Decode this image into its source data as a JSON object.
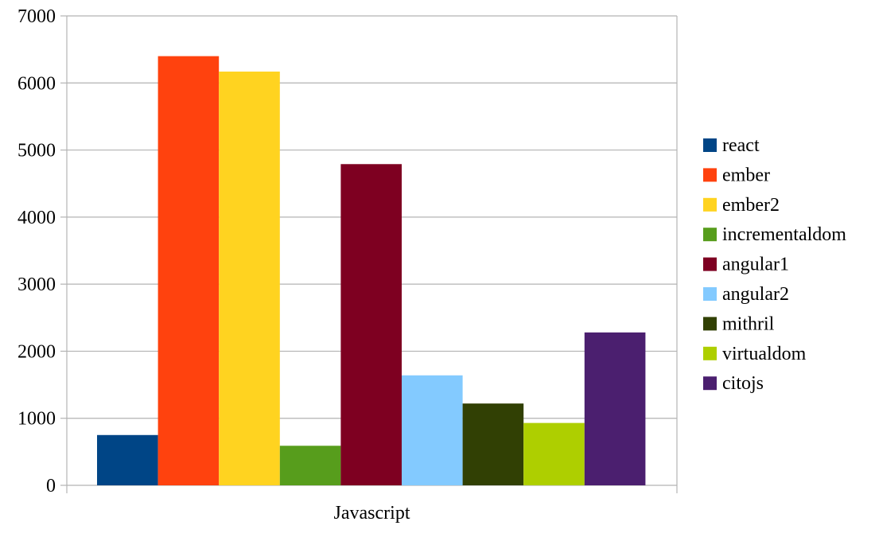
{
  "chart_data": {
    "type": "bar",
    "categories": [
      "Javascript"
    ],
    "series": [
      {
        "name": "react",
        "values": [
          750
        ],
        "color": "#004586"
      },
      {
        "name": "ember",
        "values": [
          6400
        ],
        "color": "#ff420e"
      },
      {
        "name": "ember2",
        "values": [
          6170
        ],
        "color": "#ffd320"
      },
      {
        "name": "incrementaldom",
        "values": [
          590
        ],
        "color": "#579d1c"
      },
      {
        "name": "angular1",
        "values": [
          4790
        ],
        "color": "#7e0021"
      },
      {
        "name": "angular2",
        "values": [
          1640
        ],
        "color": "#83caff"
      },
      {
        "name": "mithril",
        "values": [
          1220
        ],
        "color": "#314004"
      },
      {
        "name": "virtualdom",
        "values": [
          930
        ],
        "color": "#aecf00"
      },
      {
        "name": "citojs",
        "values": [
          2280
        ],
        "color": "#4b1f6f"
      }
    ],
    "y_ticks": [
      "0",
      "1000",
      "2000",
      "3000",
      "4000",
      "5000",
      "6000",
      "7000"
    ],
    "ylim": [
      0,
      7000
    ],
    "grid": true,
    "legend_position": "right",
    "title": "",
    "xlabel": "",
    "ylabel": ""
  }
}
